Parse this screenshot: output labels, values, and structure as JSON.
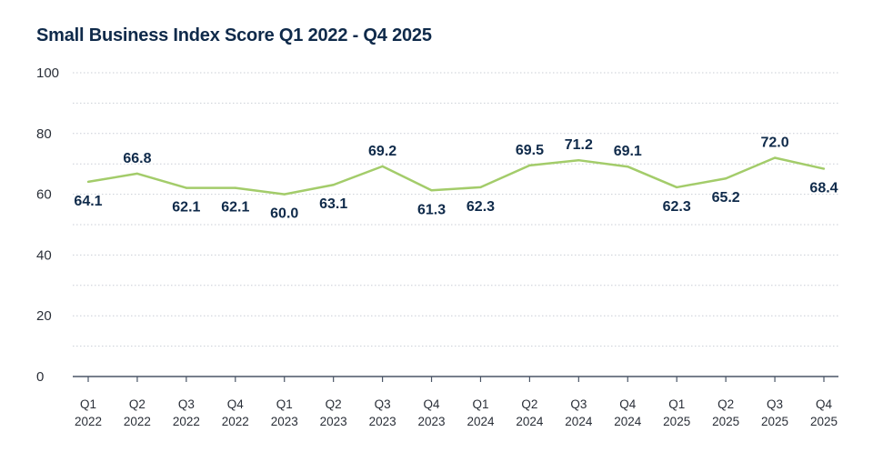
{
  "chart_data": {
    "type": "line",
    "title": "Small Business Index Score Q1 2022 - Q4 2025",
    "xlabel": "",
    "ylabel": "",
    "ylim": [
      0,
      100
    ],
    "yticks": [
      "0",
      "20",
      "40",
      "60",
      "80",
      "100"
    ],
    "grid": true,
    "categories": [
      [
        "Q1",
        "2022"
      ],
      [
        "Q2",
        "2022"
      ],
      [
        "Q3",
        "2022"
      ],
      [
        "Q4",
        "2022"
      ],
      [
        "Q1",
        "2023"
      ],
      [
        "Q2",
        "2023"
      ],
      [
        "Q3",
        "2023"
      ],
      [
        "Q4",
        "2023"
      ],
      [
        "Q1",
        "2024"
      ],
      [
        "Q2",
        "2024"
      ],
      [
        "Q3",
        "2024"
      ],
      [
        "Q4",
        "2024"
      ],
      [
        "Q1",
        "2025"
      ],
      [
        "Q2",
        "2025"
      ],
      [
        "Q3",
        "2025"
      ],
      [
        "Q4",
        "2025"
      ]
    ],
    "series": [
      {
        "values": [
          64.1,
          66.8,
          62.1,
          62.1,
          60.0,
          63.1,
          69.2,
          61.3,
          62.3,
          69.5,
          71.2,
          69.1,
          62.3,
          65.2,
          72.0,
          68.4
        ],
        "labels": [
          "64.1",
          "66.8",
          "62.1",
          "62.1",
          "60.0",
          "63.1",
          "69.2",
          "61.3",
          "62.3",
          "69.5",
          "71.2",
          "69.1",
          "62.3",
          "65.2",
          "72.0",
          "68.4"
        ],
        "label_position": [
          "below",
          "above",
          "below",
          "below",
          "below",
          "below",
          "above",
          "below",
          "below",
          "above",
          "above",
          "above",
          "below",
          "below",
          "above",
          "below"
        ]
      }
    ],
    "colors": {
      "line": "#a3cc6a",
      "title": "#0f2a4a",
      "grid": "#c9ced6",
      "axis": "#4a5566"
    }
  }
}
